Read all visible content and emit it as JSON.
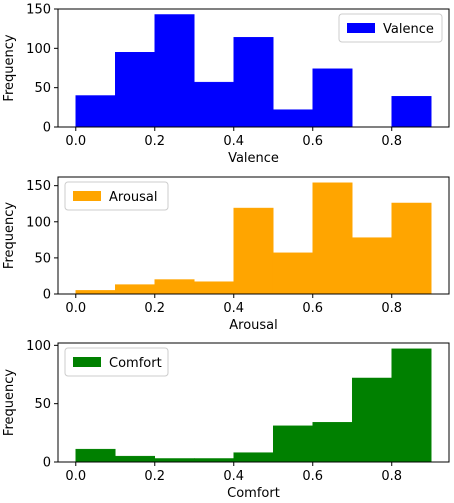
{
  "chart_data": [
    {
      "type": "bar",
      "series_name": "Valence",
      "color": "#0000ff",
      "bin_edges": [
        0.0,
        0.1,
        0.2,
        0.3,
        0.4,
        0.5,
        0.6,
        0.7,
        0.8,
        0.9
      ],
      "values": [
        40,
        95,
        143,
        57,
        114,
        22,
        74,
        0,
        39
      ],
      "xlabel": "Valence",
      "ylabel": "Frequency",
      "xlim": [
        -0.045,
        0.945
      ],
      "ylim": [
        0,
        150
      ],
      "xticks": [
        0.0,
        0.2,
        0.4,
        0.6,
        0.8
      ],
      "xtick_labels": [
        "0.0",
        "0.2",
        "0.4",
        "0.6",
        "0.8"
      ],
      "yticks": [
        0,
        50,
        100,
        150
      ],
      "ytick_labels": [
        "0",
        "50",
        "100",
        "150"
      ],
      "legend_placement": "top-right",
      "grid": false
    },
    {
      "type": "bar",
      "series_name": "Arousal",
      "color": "#ffa500",
      "bin_edges": [
        0.0,
        0.1,
        0.2,
        0.3,
        0.4,
        0.5,
        0.6,
        0.7,
        0.8,
        0.9
      ],
      "values": [
        5,
        13,
        20,
        17,
        119,
        57,
        154,
        78,
        126
      ],
      "xlabel": "Arousal",
      "ylabel": "Frequency",
      "xlim": [
        -0.045,
        0.945
      ],
      "ylim": [
        0,
        162
      ],
      "xticks": [
        0.0,
        0.2,
        0.4,
        0.6,
        0.8
      ],
      "xtick_labels": [
        "0.0",
        "0.2",
        "0.4",
        "0.6",
        "0.8"
      ],
      "yticks": [
        0,
        50,
        100,
        150
      ],
      "ytick_labels": [
        "0",
        "50",
        "100",
        "150"
      ],
      "legend_placement": "top-left",
      "grid": false
    },
    {
      "type": "bar",
      "series_name": "Comfort",
      "color": "#008000",
      "bin_edges": [
        0.0,
        0.1,
        0.2,
        0.3,
        0.4,
        0.5,
        0.6,
        0.7,
        0.8,
        0.9
      ],
      "values": [
        11,
        5,
        3,
        3,
        8,
        31,
        34,
        72,
        97
      ],
      "xlabel": "Comfort",
      "ylabel": "Frequency",
      "xlim": [
        -0.045,
        0.945
      ],
      "ylim": [
        0,
        102
      ],
      "xticks": [
        0.0,
        0.2,
        0.4,
        0.6,
        0.8
      ],
      "xtick_labels": [
        "0.0",
        "0.2",
        "0.4",
        "0.6",
        "0.8"
      ],
      "yticks": [
        0,
        50,
        100
      ],
      "ytick_labels": [
        "0",
        "50",
        "100"
      ],
      "legend_placement": "top-left",
      "grid": false
    }
  ]
}
